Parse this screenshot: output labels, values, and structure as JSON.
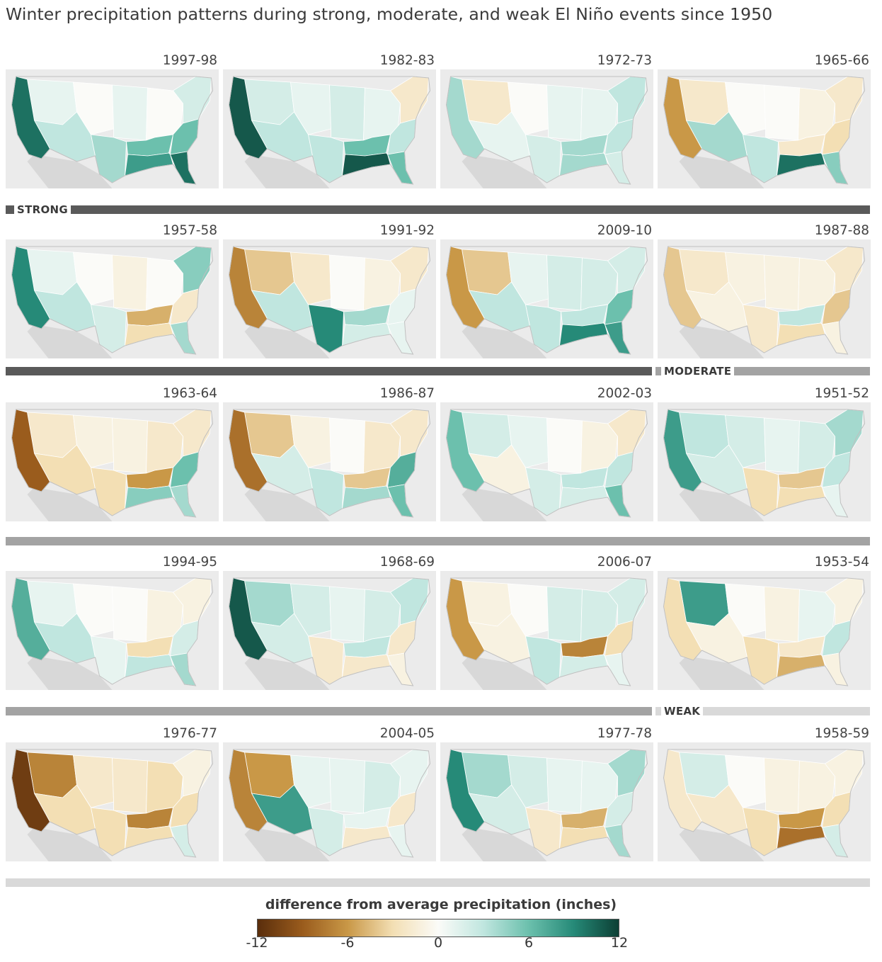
{
  "title": "Winter precipitation patterns during strong, moderate, and weak El Niño events since 1950",
  "categories": {
    "strong": {
      "label": "STRONG",
      "color": "#5a5a5a"
    },
    "moderate": {
      "label": "MODERATE",
      "color": "#a3a3a3"
    },
    "weak": {
      "label": "WEAK",
      "color": "#d9d9d9"
    }
  },
  "panels": [
    {
      "year": "1997-98",
      "strength": "strong",
      "anomaly": {
        "west_coast": 10,
        "northwest_interior": 1,
        "southwest": 3,
        "rockies": 0,
        "plains": 1,
        "midwest": 0,
        "south_central": 6,
        "gulf_coast": 8,
        "southeast": 6,
        "northeast": 2,
        "florida": 10,
        "texas": 4
      }
    },
    {
      "year": "1982-83",
      "strength": "strong",
      "anomaly": {
        "west_coast": 11,
        "northwest_interior": 2,
        "southwest": 3,
        "rockies": 1,
        "plains": 2,
        "midwest": 1,
        "south_central": 6,
        "gulf_coast": 11,
        "southeast": 3,
        "northeast": -2,
        "florida": 6,
        "texas": 3
      }
    },
    {
      "year": "1972-73",
      "strength": "strong",
      "anomaly": {
        "west_coast": 4,
        "northwest_interior": -2,
        "southwest": 1,
        "rockies": 0,
        "plains": 1,
        "midwest": 1,
        "south_central": 4,
        "gulf_coast": 4,
        "southeast": 3,
        "northeast": 3,
        "florida": 2,
        "texas": 2
      }
    },
    {
      "year": "1965-66",
      "strength": "strong",
      "anomaly": {
        "west_coast": -6,
        "northwest_interior": -2,
        "southwest": 4,
        "rockies": 0,
        "plains": 0,
        "midwest": -1,
        "south_central": -2,
        "gulf_coast": 10,
        "southeast": -3,
        "northeast": -2,
        "florida": 5,
        "texas": 3
      }
    },
    {
      "year": "1957-58",
      "strength": "strong",
      "anomaly": {
        "west_coast": 9,
        "northwest_interior": 1,
        "southwest": 3,
        "rockies": 0,
        "plains": -1,
        "midwest": 0,
        "south_central": -5,
        "gulf_coast": -3,
        "southeast": -2,
        "northeast": 5,
        "florida": 4,
        "texas": 2
      }
    },
    {
      "year": "1991-92",
      "strength": "strong",
      "anomaly": {
        "west_coast": -7,
        "northwest_interior": -4,
        "southwest": 3,
        "rockies": -2,
        "plains": 0,
        "midwest": -1,
        "south_central": 4,
        "gulf_coast": 2,
        "southeast": 1,
        "northeast": -2,
        "florida": 1,
        "texas": 9
      }
    },
    {
      "year": "2009-10",
      "strength": "moderate",
      "anomaly": {
        "west_coast": -6,
        "northwest_interior": -4,
        "southwest": 3,
        "rockies": 1,
        "plains": 2,
        "midwest": 2,
        "south_central": 3,
        "gulf_coast": 9,
        "southeast": 6,
        "northeast": 2,
        "florida": 8,
        "texas": 3
      }
    },
    {
      "year": "1987-88",
      "strength": "moderate",
      "anomaly": {
        "west_coast": -4,
        "northwest_interior": -2,
        "southwest": -1,
        "rockies": -1,
        "plains": -1,
        "midwest": -1,
        "south_central": 3,
        "gulf_coast": -3,
        "southeast": -4,
        "northeast": -2,
        "florida": -1,
        "texas": -2
      }
    },
    {
      "year": "1963-64",
      "strength": "moderate",
      "anomaly": {
        "west_coast": -9,
        "northwest_interior": -2,
        "southwest": -3,
        "rockies": -1,
        "plains": -1,
        "midwest": -2,
        "south_central": -6,
        "gulf_coast": 5,
        "southeast": 6,
        "northeast": -2,
        "florida": 4,
        "texas": -3
      }
    },
    {
      "year": "1986-87",
      "strength": "moderate",
      "anomaly": {
        "west_coast": -8,
        "northwest_interior": -4,
        "southwest": 2,
        "rockies": -1,
        "plains": 0,
        "midwest": -2,
        "south_central": -4,
        "gulf_coast": 4,
        "southeast": 7,
        "northeast": -2,
        "florida": 6,
        "texas": 3
      }
    },
    {
      "year": "2002-03",
      "strength": "moderate",
      "anomaly": {
        "west_coast": 6,
        "northwest_interior": 2,
        "southwest": -1,
        "rockies": 1,
        "plains": 0,
        "midwest": -1,
        "south_central": 3,
        "gulf_coast": 2,
        "southeast": 3,
        "northeast": -2,
        "florida": 6,
        "texas": 2
      }
    },
    {
      "year": "1951-52",
      "strength": "moderate",
      "anomaly": {
        "west_coast": 8,
        "northwest_interior": 3,
        "southwest": 2,
        "rockies": 2,
        "plains": 1,
        "midwest": 2,
        "south_central": -4,
        "gulf_coast": -3,
        "southeast": 3,
        "northeast": 4,
        "florida": 1,
        "texas": -3
      }
    },
    {
      "year": "1994-95",
      "strength": "moderate",
      "anomaly": {
        "west_coast": 7,
        "northwest_interior": 1,
        "southwest": 3,
        "rockies": 0,
        "plains": 0,
        "midwest": -1,
        "south_central": -3,
        "gulf_coast": 3,
        "southeast": 2,
        "northeast": -1,
        "florida": 4,
        "texas": 1
      }
    },
    {
      "year": "1968-69",
      "strength": "moderate",
      "anomaly": {
        "west_coast": 11,
        "northwest_interior": 4,
        "southwest": 2,
        "rockies": 2,
        "plains": 1,
        "midwest": 2,
        "south_central": 3,
        "gulf_coast": -2,
        "southeast": -2,
        "northeast": 3,
        "florida": -1,
        "texas": -2
      }
    },
    {
      "year": "2006-07",
      "strength": "weak",
      "anomaly": {
        "west_coast": -6,
        "northwest_interior": -1,
        "southwest": -1,
        "rockies": 0,
        "plains": 2,
        "midwest": 2,
        "south_central": -7,
        "gulf_coast": 2,
        "southeast": -3,
        "northeast": 2,
        "florida": 1,
        "texas": 3
      }
    },
    {
      "year": "1953-54",
      "strength": "weak",
      "anomaly": {
        "west_coast": -3,
        "northwest_interior": 8,
        "southwest": -1,
        "rockies": 0,
        "plains": -1,
        "midwest": 1,
        "south_central": -2,
        "gulf_coast": -5,
        "southeast": 3,
        "northeast": -1,
        "florida": -1,
        "texas": -3
      }
    },
    {
      "year": "1976-77",
      "strength": "weak",
      "anomaly": {
        "west_coast": -11,
        "northwest_interior": -7,
        "southwest": -3,
        "rockies": -2,
        "plains": -2,
        "midwest": -3,
        "south_central": -7,
        "gulf_coast": -3,
        "southeast": -3,
        "northeast": -1,
        "florida": 2,
        "texas": -3
      }
    },
    {
      "year": "2004-05",
      "strength": "weak",
      "anomaly": {
        "west_coast": -7,
        "northwest_interior": -6,
        "southwest": 8,
        "rockies": 1,
        "plains": 1,
        "midwest": 2,
        "south_central": 1,
        "gulf_coast": -2,
        "southeast": -2,
        "northeast": 1,
        "florida": 1,
        "texas": 2
      }
    },
    {
      "year": "1977-78",
      "strength": "weak",
      "anomaly": {
        "west_coast": 9,
        "northwest_interior": 4,
        "southwest": 2,
        "rockies": 2,
        "plains": 1,
        "midwest": 1,
        "south_central": -5,
        "gulf_coast": -3,
        "southeast": 2,
        "northeast": 4,
        "florida": 4,
        "texas": -2
      }
    },
    {
      "year": "1958-59",
      "strength": "weak",
      "anomaly": {
        "west_coast": -2,
        "northwest_interior": 2,
        "southwest": -2,
        "rockies": 0,
        "plains": -1,
        "midwest": -1,
        "south_central": -6,
        "gulf_coast": -8,
        "southeast": -3,
        "northeast": -1,
        "florida": 2,
        "texas": -3
      }
    }
  ],
  "legend": {
    "title": "difference from average precipitation (inches)",
    "min": -12,
    "max": 12,
    "ticks": [
      "-12",
      "-6",
      "0",
      "6",
      "12"
    ],
    "colors": [
      "#5a2e0c",
      "#9a5c1d",
      "#c99847",
      "#f3dfb4",
      "#fbfbf8",
      "#c0e6df",
      "#6cc0ad",
      "#268a78",
      "#0c3f34"
    ]
  }
}
